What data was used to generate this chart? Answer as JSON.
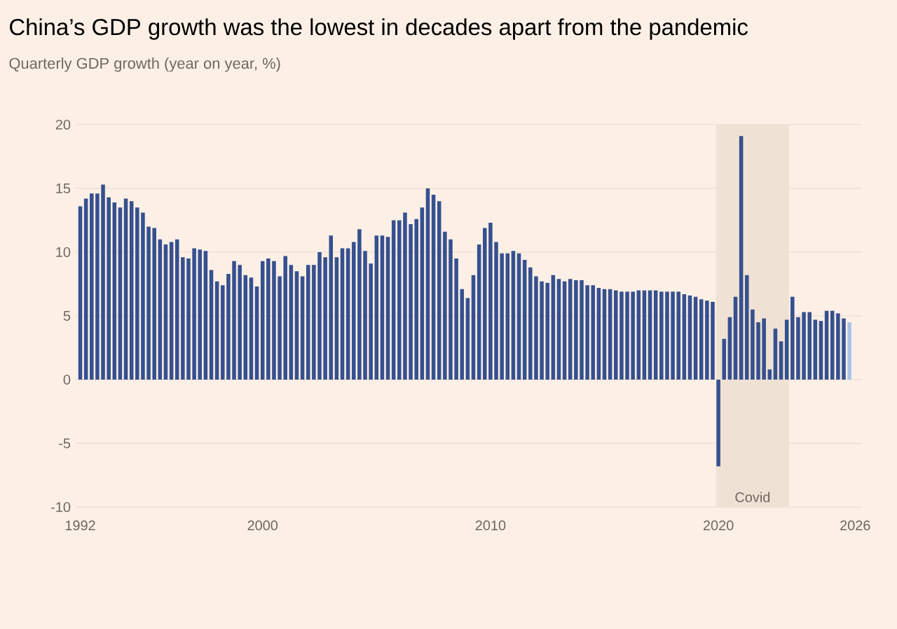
{
  "chart_data": {
    "type": "bar",
    "title": "China’s GDP growth was the lowest in decades apart from the pandemic",
    "subtitle": "Quarterly GDP growth (year on year, %)",
    "x": [
      1992,
      1992.25,
      1992.5,
      1992.75,
      1993,
      1993.25,
      1993.5,
      1993.75,
      1994,
      1994.25,
      1994.5,
      1994.75,
      1995,
      1995.25,
      1995.5,
      1995.75,
      1996,
      1996.25,
      1996.5,
      1996.75,
      1997,
      1997.25,
      1997.5,
      1997.75,
      1998,
      1998.25,
      1998.5,
      1998.75,
      1999,
      1999.25,
      1999.5,
      1999.75,
      2000,
      2000.25,
      2000.5,
      2000.75,
      2001,
      2001.25,
      2001.5,
      2001.75,
      2002,
      2002.25,
      2002.5,
      2002.75,
      2003,
      2003.25,
      2003.5,
      2003.75,
      2004,
      2004.25,
      2004.5,
      2004.75,
      2005,
      2005.25,
      2005.5,
      2005.75,
      2006,
      2006.25,
      2006.5,
      2006.75,
      2007,
      2007.25,
      2007.5,
      2007.75,
      2008,
      2008.25,
      2008.5,
      2008.75,
      2009,
      2009.25,
      2009.5,
      2009.75,
      2010,
      2010.25,
      2010.5,
      2010.75,
      2011,
      2011.25,
      2011.5,
      2011.75,
      2012,
      2012.25,
      2012.5,
      2012.75,
      2013,
      2013.25,
      2013.5,
      2013.75,
      2014,
      2014.25,
      2014.5,
      2014.75,
      2015,
      2015.25,
      2015.5,
      2015.75,
      2016,
      2016.25,
      2016.5,
      2016.75,
      2017,
      2017.25,
      2017.5,
      2017.75,
      2018,
      2018.25,
      2018.5,
      2018.75,
      2019,
      2019.25,
      2019.5,
      2019.75,
      2020,
      2020.25,
      2020.5,
      2020.75,
      2021,
      2021.25,
      2021.5,
      2021.75,
      2022,
      2022.25,
      2022.5,
      2022.75,
      2023,
      2023.25,
      2023.5,
      2023.75,
      2024,
      2024.25,
      2024.5,
      2024.75,
      2025,
      2025.25,
      2025.5,
      2025.75
    ],
    "values": [
      13.6,
      14.2,
      14.6,
      14.6,
      15.3,
      14.3,
      13.9,
      13.5,
      14.2,
      14.0,
      13.5,
      13.1,
      12.0,
      11.9,
      11.0,
      10.6,
      10.8,
      11.0,
      9.6,
      9.5,
      10.3,
      10.2,
      10.1,
      8.6,
      7.7,
      7.4,
      8.3,
      9.3,
      9.0,
      8.2,
      8.0,
      7.3,
      9.3,
      9.5,
      9.3,
      8.1,
      9.7,
      9.0,
      8.5,
      8.1,
      9.0,
      9.0,
      10.0,
      9.6,
      11.3,
      9.6,
      10.3,
      10.3,
      10.8,
      11.8,
      10.1,
      9.1,
      11.3,
      11.3,
      11.2,
      12.5,
      12.5,
      13.1,
      12.2,
      12.6,
      13.5,
      15.0,
      14.5,
      14.0,
      11.6,
      11.0,
      9.5,
      7.1,
      6.4,
      8.2,
      10.6,
      11.9,
      12.3,
      10.8,
      9.9,
      9.9,
      10.1,
      9.9,
      9.4,
      8.8,
      8.1,
      7.7,
      7.6,
      8.2,
      7.9,
      7.7,
      7.9,
      7.8,
      7.8,
      7.4,
      7.4,
      7.2,
      7.1,
      7.1,
      7.0,
      6.9,
      6.9,
      6.9,
      7.0,
      7.0,
      7.0,
      7.0,
      6.9,
      6.9,
      6.9,
      6.9,
      6.7,
      6.6,
      6.5,
      6.3,
      6.2,
      6.1,
      -6.8,
      3.2,
      4.9,
      6.5,
      19.1,
      8.2,
      5.5,
      4.5,
      4.8,
      0.8,
      4.0,
      3.0,
      4.7,
      6.5,
      4.9,
      5.3,
      5.3,
      4.7,
      4.6,
      5.4,
      5.4,
      5.2,
      4.8,
      4.5
    ],
    "colors": [
      "#36508f",
      "#36508f",
      "#36508f",
      "#36508f",
      "#36508f",
      "#36508f",
      "#36508f",
      "#36508f",
      "#36508f",
      "#36508f",
      "#36508f",
      "#36508f",
      "#36508f",
      "#36508f",
      "#36508f",
      "#36508f",
      "#36508f",
      "#36508f",
      "#36508f",
      "#36508f",
      "#36508f",
      "#36508f",
      "#36508f",
      "#36508f",
      "#36508f",
      "#36508f",
      "#36508f",
      "#36508f",
      "#36508f",
      "#36508f",
      "#36508f",
      "#36508f",
      "#36508f",
      "#36508f",
      "#36508f",
      "#36508f",
      "#36508f",
      "#36508f",
      "#36508f",
      "#36508f",
      "#36508f",
      "#36508f",
      "#36508f",
      "#36508f",
      "#36508f",
      "#36508f",
      "#36508f",
      "#36508f",
      "#36508f",
      "#36508f",
      "#36508f",
      "#36508f",
      "#36508f",
      "#36508f",
      "#36508f",
      "#36508f",
      "#36508f",
      "#36508f",
      "#36508f",
      "#36508f",
      "#36508f",
      "#36508f",
      "#36508f",
      "#36508f",
      "#36508f",
      "#36508f",
      "#36508f",
      "#36508f",
      "#36508f",
      "#36508f",
      "#36508f",
      "#36508f",
      "#36508f",
      "#36508f",
      "#36508f",
      "#36508f",
      "#36508f",
      "#36508f",
      "#36508f",
      "#36508f",
      "#36508f",
      "#36508f",
      "#36508f",
      "#36508f",
      "#36508f",
      "#36508f",
      "#36508f",
      "#36508f",
      "#36508f",
      "#36508f",
      "#36508f",
      "#36508f",
      "#36508f",
      "#36508f",
      "#36508f",
      "#36508f",
      "#36508f",
      "#36508f",
      "#36508f",
      "#36508f",
      "#36508f",
      "#36508f",
      "#36508f",
      "#36508f",
      "#36508f",
      "#36508f",
      "#36508f",
      "#36508f",
      "#36508f",
      "#36508f",
      "#36508f",
      "#36508f",
      "#36508f",
      "#36508f",
      "#36508f",
      "#36508f",
      "#36508f",
      "#36508f",
      "#36508f",
      "#36508f",
      "#36508f",
      "#36508f",
      "#36508f",
      "#36508f",
      "#36508f",
      "#36508f",
      "#36508f",
      "#36508f",
      "#36508f",
      "#36508f",
      "#36508f",
      "#36508f",
      "#36508f",
      "#36508f",
      "#36508f",
      "#a8c3e6"
    ],
    "xlim": [
      1991.8,
      2026.3
    ],
    "xticks": [
      1992,
      2000,
      2010,
      2020,
      2026
    ],
    "ylim": [
      -10,
      20
    ],
    "yticks": [
      -10,
      -5,
      0,
      5,
      10,
      15,
      20
    ],
    "grid": "y",
    "bands": [
      {
        "axis": "x",
        "from": 2019.9,
        "to": 2023.1,
        "label": "Covid",
        "color": "#efe2d4"
      }
    ]
  }
}
